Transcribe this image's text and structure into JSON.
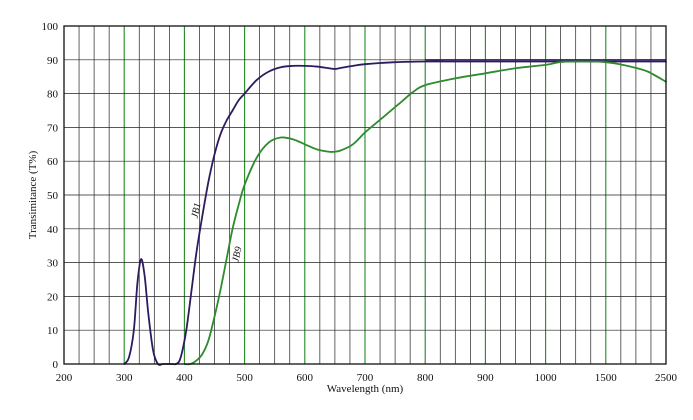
{
  "chart_data": {
    "type": "line",
    "title": "",
    "xlabel": "Wavelength (nm)",
    "ylabel": "Transimitance (T%)",
    "x_tick_labels": [
      "200",
      "300",
      "400",
      "500",
      "600",
      "700",
      "800",
      "900",
      "1000",
      "1500",
      "2500"
    ],
    "y_tick_labels": [
      "0",
      "10",
      "20",
      "30",
      "40",
      "50",
      "60",
      "70",
      "80",
      "90",
      "100"
    ],
    "ylim": [
      0,
      100
    ],
    "x_scale": "piecewise: 200–1000 nm linear in 100 nm steps, then 1000, 1500, 2500 at equal spacing",
    "grid": true,
    "colors": {
      "frame": "#111111",
      "grid_major": "#228b22",
      "grid_minor": "#222222",
      "JB1": "#2e1a5e",
      "JB9": "#2e8b2e",
      "reference": "#2e1a5e"
    },
    "reference_line": {
      "y": 90
    },
    "series": [
      {
        "name": "JB1",
        "x": [
          300,
          308,
          316,
          322,
          328,
          334,
          340,
          348,
          356,
          364,
          372,
          380,
          386,
          392,
          398,
          404,
          412,
          420,
          430,
          440,
          450,
          460,
          470,
          480,
          490,
          500,
          520,
          540,
          560,
          580,
          600,
          620,
          640,
          650,
          660,
          680,
          700,
          750,
          800,
          850,
          900,
          950,
          1000,
          1100,
          1200,
          1300,
          1400,
          1500,
          2000,
          2500
        ],
        "y": [
          0,
          2,
          10,
          24,
          31,
          26,
          15,
          4,
          0,
          0,
          0,
          0,
          0,
          1,
          5,
          11,
          22,
          33,
          44,
          54,
          62,
          68,
          72,
          75,
          78,
          80,
          84,
          86.5,
          87.8,
          88.2,
          88.2,
          88,
          87.5,
          87.3,
          87.6,
          88.2,
          88.7,
          89.3,
          89.5,
          89.5,
          89.5,
          89.5,
          89.5,
          89.5,
          89.5,
          89.5,
          89.5,
          89.5,
          89.5,
          89.5
        ]
      },
      {
        "name": "JB9",
        "x": [
          400,
          410,
          420,
          430,
          440,
          450,
          460,
          470,
          480,
          490,
          500,
          520,
          540,
          560,
          580,
          600,
          620,
          640,
          650,
          660,
          680,
          700,
          720,
          740,
          760,
          780,
          800,
          850,
          900,
          950,
          1000,
          1100,
          1200,
          1300,
          1400,
          1500,
          1700,
          2000,
          2200,
          2500
        ],
        "y": [
          0,
          0,
          1,
          3,
          7,
          14,
          22,
          31,
          40,
          47,
          53,
          61,
          65.5,
          67,
          66.5,
          65,
          63.5,
          62.8,
          62.8,
          63.2,
          65,
          68.5,
          71.5,
          74.5,
          77.5,
          80.5,
          82.5,
          84.5,
          86,
          87.5,
          88.5,
          89.2,
          89.5,
          89.5,
          89.5,
          89.3,
          88.8,
          87.6,
          86.5,
          83.5
        ]
      }
    ]
  }
}
